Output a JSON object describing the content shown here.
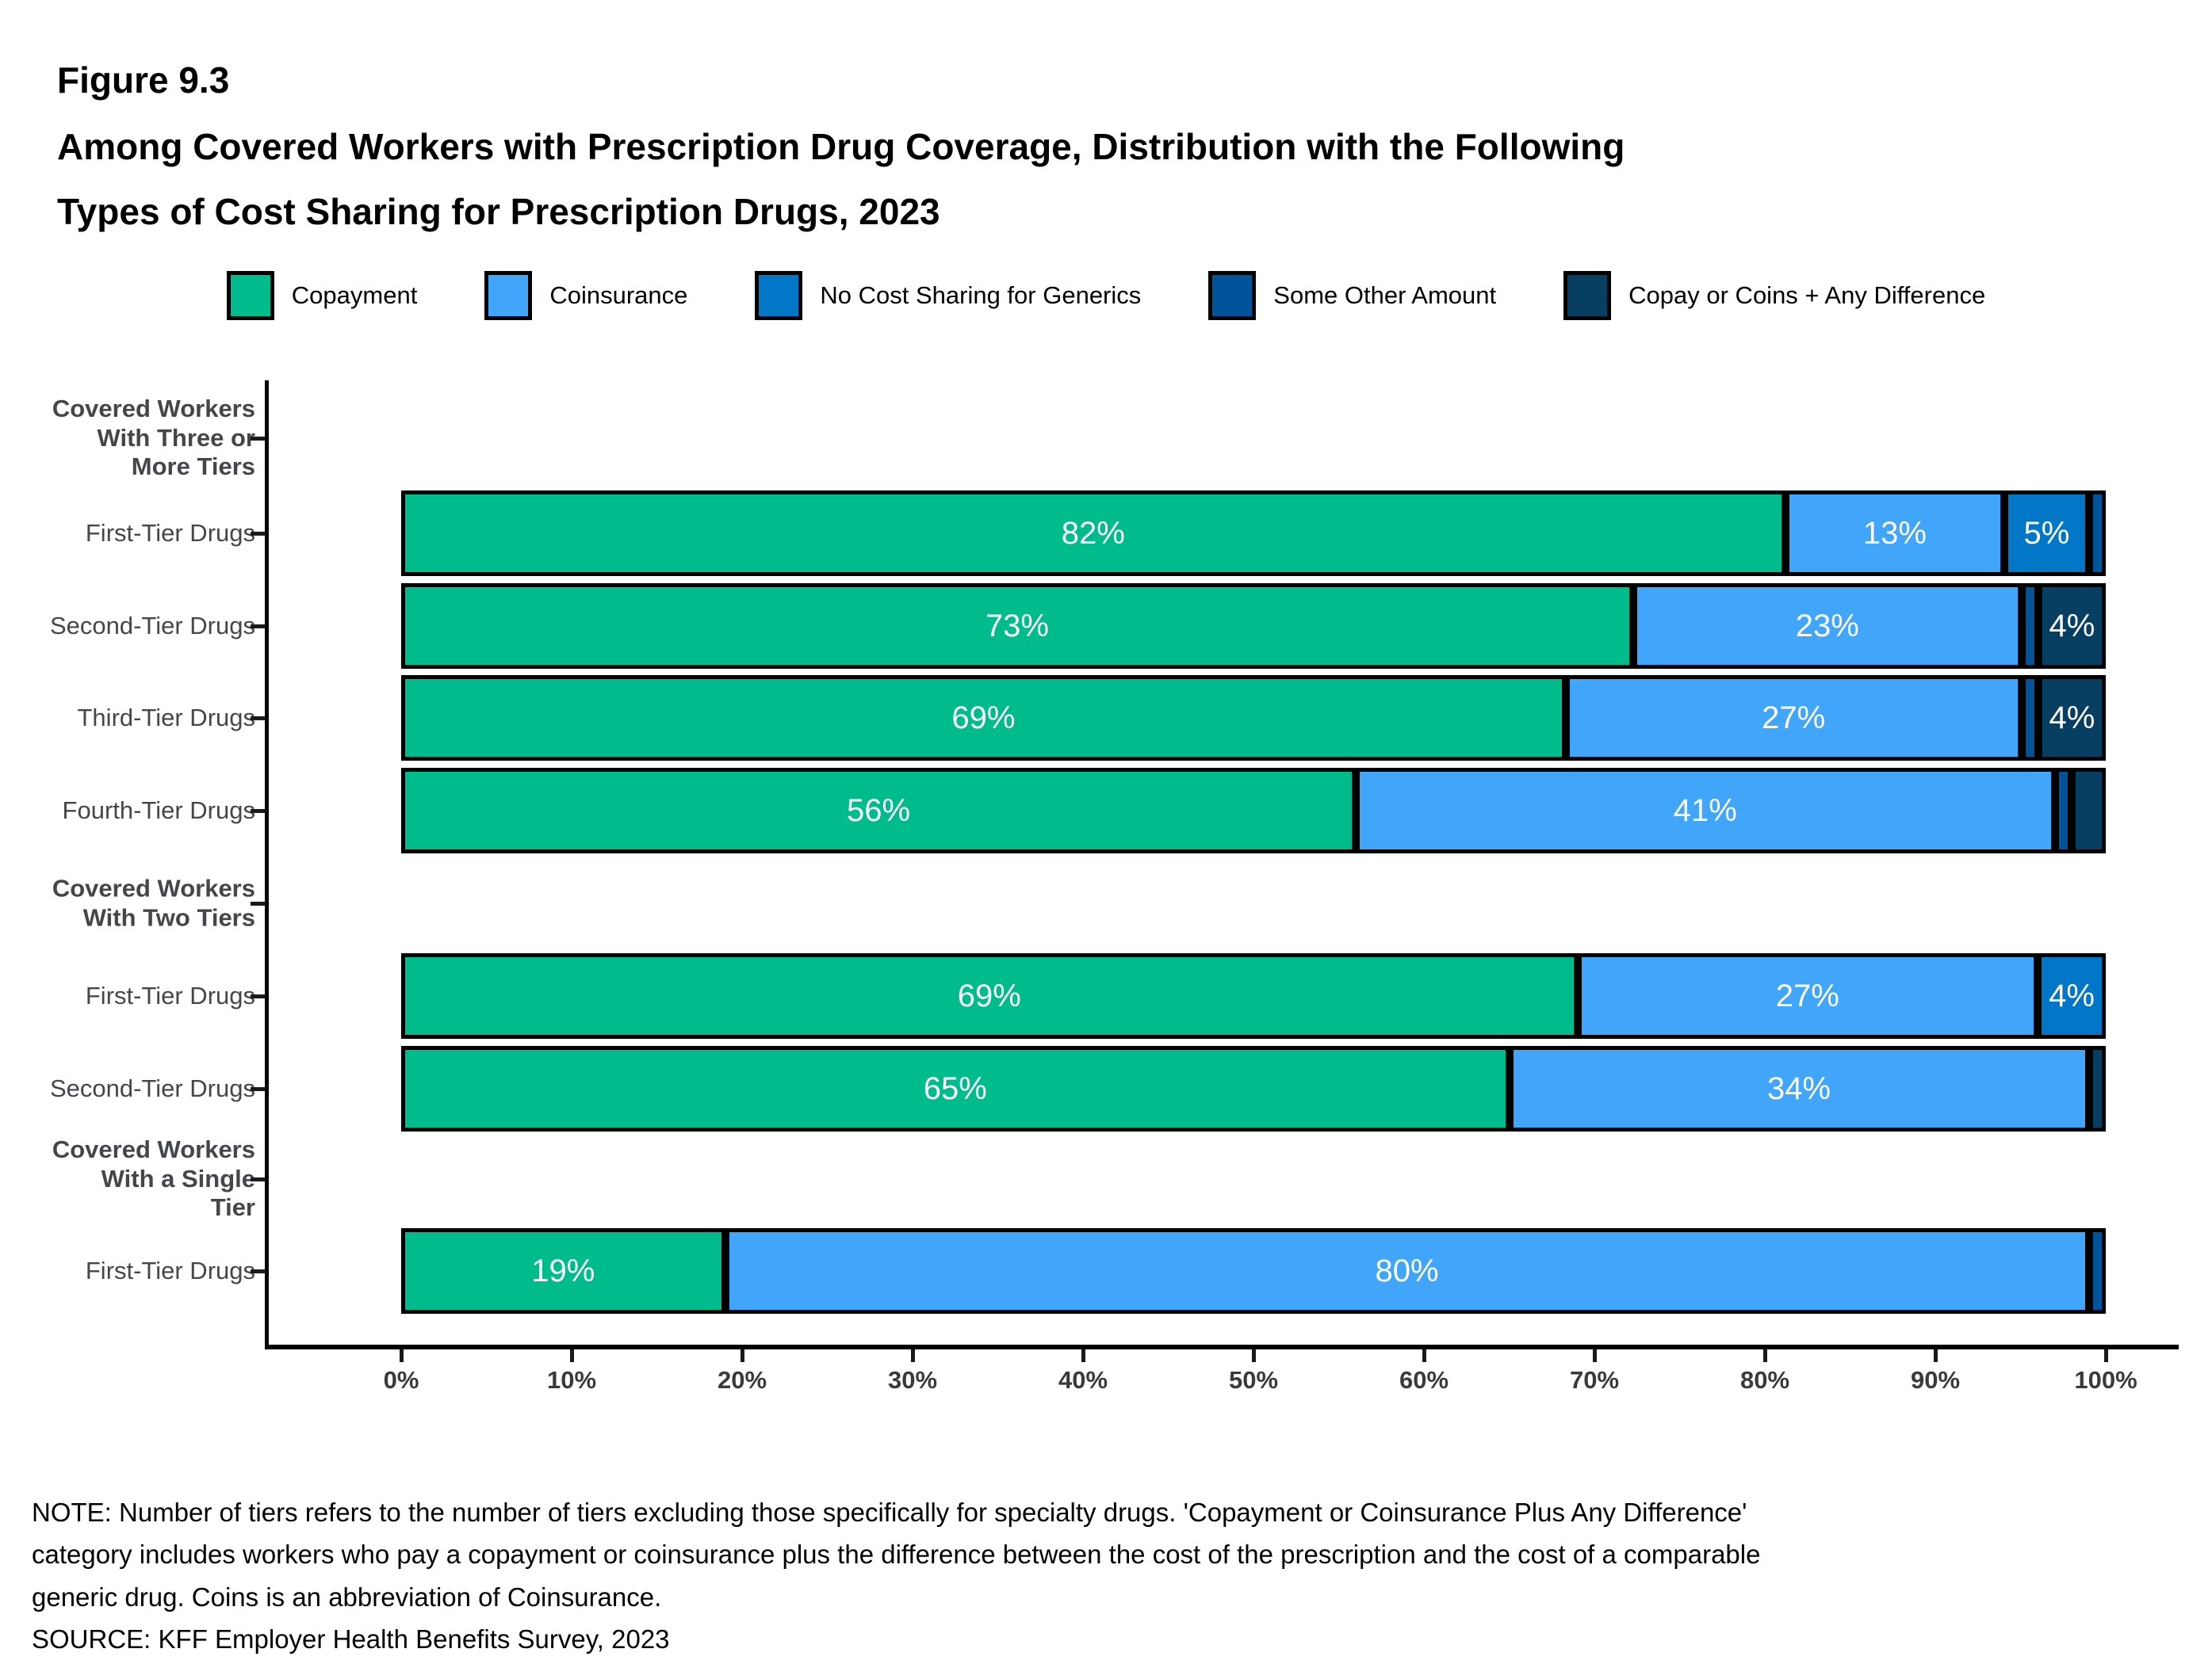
{
  "figure": {
    "label": "Figure 9.3",
    "title_lines": [
      "Among Covered Workers with Prescription Drug Coverage, Distribution with the Following",
      "Types of Cost Sharing for Prescription Drugs, 2023"
    ]
  },
  "legend": [
    {
      "label": "Copayment",
      "color": "#00BC8C"
    },
    {
      "label": "Coinsurance",
      "color": "#41A6FA"
    },
    {
      "label": "No Cost Sharing for Generics",
      "color": "#0277C8"
    },
    {
      "label": "Some Other Amount",
      "color": "#01549A"
    },
    {
      "label": "Copay or Coins + Any Difference",
      "color": "#073F63"
    }
  ],
  "chart_data": {
    "type": "bar",
    "orientation": "horizontal",
    "stacked": true,
    "title": "Among Covered Workers with Prescription Drug Coverage, Distribution with the Following Types of Cost Sharing for Prescription Drugs, 2023",
    "series_names": [
      "Copayment",
      "Coinsurance",
      "No Cost Sharing for Generics",
      "Some Other Amount",
      "Copay or Coins + Any Difference"
    ],
    "x_axis": {
      "min": 0,
      "max": 100,
      "ticks": [
        "0%",
        "10%",
        "20%",
        "30%",
        "40%",
        "50%",
        "60%",
        "70%",
        "80%",
        "90%",
        "100%"
      ]
    },
    "legend_position": "top",
    "groups": [
      {
        "lines": "Covered Workers\nWith Three or\nMore Tiers"
      },
      {
        "lines": "Covered Workers\nWith Two Tiers"
      },
      {
        "lines": "Covered Workers\nWith a Single\nTier"
      }
    ],
    "rows": [
      {
        "group": 0,
        "label": "First-Tier Drugs",
        "values": [
          82,
          13,
          5,
          1,
          0
        ],
        "value_labels": [
          "82%",
          "13%",
          "5%",
          "",
          ""
        ]
      },
      {
        "group": 0,
        "label": "Second-Tier Drugs",
        "values": [
          73,
          23,
          0,
          1,
          4
        ],
        "value_labels": [
          "73%",
          "23%",
          "",
          "",
          "4%"
        ]
      },
      {
        "group": 0,
        "label": "Third-Tier Drugs",
        "values": [
          69,
          27,
          0,
          1,
          4
        ],
        "value_labels": [
          "69%",
          "27%",
          "",
          "",
          "4%"
        ]
      },
      {
        "group": 0,
        "label": "Fourth-Tier Drugs",
        "values": [
          56,
          41,
          0,
          1,
          2
        ],
        "value_labels": [
          "56%",
          "41%",
          "",
          "",
          ""
        ]
      },
      {
        "group": 1,
        "label": "First-Tier Drugs",
        "values": [
          69,
          27,
          4,
          0,
          0
        ],
        "value_labels": [
          "69%",
          "27%",
          "4%",
          "",
          ""
        ]
      },
      {
        "group": 1,
        "label": "Second-Tier Drugs",
        "values": [
          65,
          34,
          0,
          0,
          1
        ],
        "value_labels": [
          "65%",
          "34%",
          "",
          "",
          ""
        ]
      },
      {
        "group": 2,
        "label": "First-Tier Drugs",
        "values": [
          19,
          80,
          0,
          1,
          0
        ],
        "value_labels": [
          "19%",
          "80%",
          "",
          "",
          ""
        ]
      }
    ]
  },
  "note": {
    "lines": [
      "NOTE: Number of tiers refers to the number of tiers excluding those specifically for specialty drugs. 'Copayment or Coinsurance Plus Any Difference'",
      "category includes workers who pay a copayment or coinsurance plus the difference between the cost of the prescription and the cost of a comparable",
      "generic drug.  Coins is an abbreviation of Coinsurance.",
      "SOURCE: KFF Employer Health Benefits Survey, 2023"
    ]
  }
}
